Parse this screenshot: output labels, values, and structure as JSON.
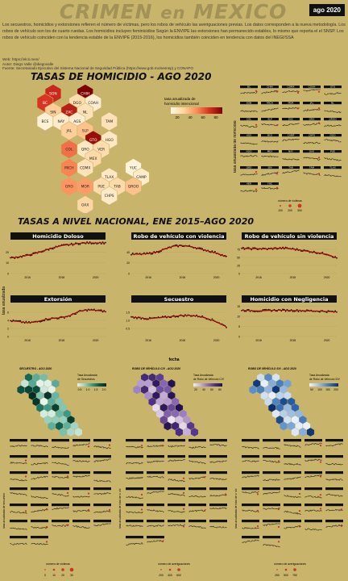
{
  "header": {
    "title_a": "CRIMEN",
    "title_en": "en",
    "title_b": "MEXICO",
    "date_badge": "ago 2020"
  },
  "intro": {
    "text": "Los secuestros, homicidios y extorsiones refieren el número de víctimas, pero los robos de vehículo las averiguaciones previas. Los datos corresponden a la nueva metodología. Los robos de vehículo son los de cuarto ruedas. Los homicidios incluyen feminicidios Según la ENVIPE las extorsiones han permanecido estables, lo mismo que reporta el el SNSP. Los robos de vehículo coinciden con la tendencia estable de la ENVIPE (2015-2016), los homicidios también coinciden en tendencia con datos del INEGI/SSA"
  },
  "credits": {
    "web": "Web: https://elcri.men/",
    "author": "Autor: Diego Valle @diegovalle",
    "source": "Fuente: Secretariado Ejecutivo del Sistema Nacional de Seguridad Pública (https://www.gob.mx/sesnsp) y CONAPO"
  },
  "homicide_section": {
    "title": "TASAS DE HOMICIDIO - AGO 2020",
    "legend_title": "tasa anualizada de homicidio intencional",
    "legend_ticks": [
      "20",
      "40",
      "60",
      "80"
    ],
    "small_multiples_ylabel": "tasa anualizada de homicidio",
    "size_legend_title": "número de víctimas",
    "size_legend_ticks": [
      "100",
      "200",
      "300"
    ]
  },
  "national_section": {
    "title": "TASAS A NIVEL NACIONAL, ENE 2015–AGO 2020",
    "ylabel": "tasa anualizada",
    "xlabel": "fecha",
    "x_ticks": [
      "2016",
      "2018",
      "2020"
    ]
  },
  "bottom_sections": [
    {
      "title": "SECUESTRO - AGO 2020",
      "legend_title": "Tasa Anualizada de Secuestros",
      "legend_ticks": [
        "0.5",
        "1.0",
        "1.5",
        "2.0"
      ],
      "ylabel": "tasa anualizada de secuestro",
      "size_title": "número de víctimas",
      "size_ticks": [
        "0",
        "10",
        "20",
        "30"
      ]
    },
    {
      "title": "ROBO DE VEHÍCULO C/V - AGO 2020",
      "legend_title": "Tasa Anualizada de Robo de Vehículo C/V",
      "legend_ticks": [
        "20",
        "40",
        "60",
        "80"
      ],
      "ylabel": "tasa anualizada de robo de v. c/v",
      "size_title": "número de averiguaciones",
      "size_ticks": [
        "200",
        "400",
        "600"
      ]
    },
    {
      "title": "ROBO DE VEHÍCULO S/V - AGO 2020",
      "legend_title": "Tasa Anualizada de Robo de Vehículo S/V",
      "legend_ticks": [
        "50",
        "100",
        "150",
        "200"
      ],
      "ylabel": "tasa anualizada de robo de v. s/v",
      "size_title": "número de averiguaciones",
      "size_ticks": [
        "250",
        "500",
        "750"
      ]
    }
  ],
  "homicide_map": {
    "states": [
      {
        "code": "SON",
        "rate": 75
      },
      {
        "code": "CHIH",
        "rate": 95
      },
      {
        "code": "BC",
        "rate": 70
      },
      {
        "code": "DGO",
        "rate": 18
      },
      {
        "code": "COAH",
        "rate": 6
      },
      {
        "code": "SIN",
        "rate": 26
      },
      {
        "code": "ZAC",
        "rate": 80
      },
      {
        "code": "NL",
        "rate": 15
      },
      {
        "code": "BCS",
        "rate": 4
      },
      {
        "code": "NAY",
        "rate": 8
      },
      {
        "code": "AGS",
        "rate": 6
      },
      {
        "code": "TAM",
        "rate": 15
      },
      {
        "code": "JAL",
        "rate": 25
      },
      {
        "code": "SLP",
        "rate": 30
      },
      {
        "code": "GTO",
        "rate": 88
      },
      {
        "code": "HGO",
        "rate": 10
      },
      {
        "code": "COL",
        "rate": 55
      },
      {
        "code": "QRO",
        "rate": 10
      },
      {
        "code": "VER",
        "rate": 18
      },
      {
        "code": "MEX",
        "rate": 20
      },
      {
        "code": "MICH",
        "rate": 50
      },
      {
        "code": "CDMX",
        "rate": 14
      },
      {
        "code": "YUC",
        "rate": 3
      },
      {
        "code": "TLAX",
        "rate": 10
      },
      {
        "code": "CAMP",
        "rate": 8
      },
      {
        "code": "GRO",
        "rate": 45
      },
      {
        "code": "MOR",
        "rate": 42
      },
      {
        "code": "PUE",
        "rate": 18
      },
      {
        "code": "TAB",
        "rate": 20
      },
      {
        "code": "QROO",
        "rate": 30
      },
      {
        "code": "CHPS",
        "rate": 9
      },
      {
        "code": "OAX",
        "rate": 22
      }
    ]
  },
  "homicide_sm_labels": [
    "BC",
    "CHIH",
    "CDMX",
    "COAH",
    "GTO",
    "SON",
    "MICH",
    "MOR",
    "JAL",
    "NL",
    "COL",
    "SLP",
    "ZAC",
    "GRO",
    "QROO",
    "AGS",
    "BCS",
    "CAMP",
    "CHPS",
    "DGO",
    "HGO",
    "MEX",
    "NAY",
    "OAX",
    "PUE",
    "QRO",
    "SIN",
    "TAB",
    "TAM",
    "TLAX",
    "VER",
    "YUC"
  ],
  "chart_data": {
    "type": "line",
    "x_range": [
      "2015-01",
      "2020-08"
    ],
    "panels": [
      {
        "name": "Homicidio Doloso",
        "ylim": [
          0,
          30
        ],
        "y_ticks": [
          "0",
          "10",
          "20"
        ],
        "x": [
          "2015-01",
          "2015-07",
          "2016-01",
          "2016-07",
          "2017-01",
          "2017-07",
          "2018-01",
          "2018-07",
          "2019-01",
          "2019-07",
          "2020-01",
          "2020-08"
        ],
        "values": [
          14.5,
          15.5,
          17,
          19,
          21.5,
          24,
          26,
          27,
          28,
          28.5,
          28.5,
          28.5
        ]
      },
      {
        "name": "Robo de vehículo con violencia",
        "ylim": [
          0,
          60
        ],
        "y_ticks": [
          "0",
          "20",
          "40"
        ],
        "x": [
          "2015-01",
          "2015-07",
          "2016-01",
          "2016-07",
          "2017-01",
          "2017-07",
          "2018-01",
          "2018-07",
          "2019-01",
          "2019-07",
          "2020-01",
          "2020-08"
        ],
        "values": [
          36,
          36,
          37,
          40,
          46,
          51,
          52,
          50,
          46,
          42,
          38,
          31
        ]
      },
      {
        "name": "Robo de vehículo sin violencia",
        "ylim": [
          0,
          100
        ],
        "y_ticks": [
          "0",
          "25",
          "50",
          "75"
        ],
        "x": [
          "2015-01",
          "2015-07",
          "2016-01",
          "2016-07",
          "2017-01",
          "2017-07",
          "2018-01",
          "2018-07",
          "2019-01",
          "2019-07",
          "2020-01",
          "2020-08"
        ],
        "values": [
          78,
          77,
          77,
          76,
          78,
          79,
          76,
          72,
          68,
          64,
          60,
          48
        ]
      },
      {
        "name": "Extorsión",
        "ylim": [
          0,
          8
        ],
        "y_ticks": [
          "0",
          "2",
          "4",
          "6"
        ],
        "x": [
          "2015-01",
          "2015-07",
          "2016-01",
          "2016-07",
          "2017-01",
          "2017-07",
          "2018-01",
          "2018-07",
          "2019-01",
          "2019-07",
          "2020-01",
          "2020-08"
        ],
        "values": [
          3.9,
          3.7,
          3.4,
          3.6,
          4.2,
          4.5,
          4.7,
          5.2,
          6.2,
          6.6,
          6.5,
          6.2
        ]
      },
      {
        "name": "Secuestro",
        "ylim": [
          0,
          2
        ],
        "y_ticks": [
          "0.5",
          "1.0",
          "1.5"
        ],
        "x": [
          "2015-01",
          "2015-07",
          "2016-01",
          "2016-07",
          "2017-01",
          "2017-07",
          "2018-01",
          "2018-07",
          "2019-01",
          "2019-07",
          "2020-01",
          "2020-08"
        ],
        "values": [
          1.2,
          1.15,
          1.1,
          1.15,
          1.2,
          1.25,
          1.3,
          1.3,
          1.25,
          1.1,
          0.9,
          0.6
        ]
      },
      {
        "name": "Homicidio con Negligencia",
        "ylim": [
          0,
          16
        ],
        "y_ticks": [
          "0",
          "5",
          "10",
          "15"
        ],
        "x": [
          "2015-01",
          "2015-07",
          "2016-01",
          "2016-07",
          "2017-01",
          "2017-07",
          "2018-01",
          "2018-07",
          "2019-01",
          "2019-07",
          "2020-01",
          "2020-08"
        ],
        "values": [
          13,
          12.8,
          12.7,
          12.9,
          13,
          13,
          12.9,
          12.8,
          12.7,
          12.6,
          12.4,
          12.2
        ]
      }
    ]
  }
}
